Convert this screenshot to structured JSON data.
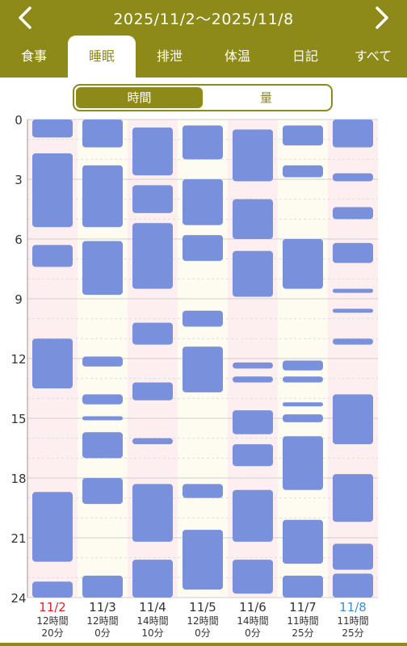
{
  "header": {
    "date_range": "2025/11/2～2025/11/8",
    "prev_icon": "chevron-left-icon",
    "next_icon": "chevron-right-icon"
  },
  "tabs": [
    {
      "label": "食事",
      "active": false
    },
    {
      "label": "睡眠",
      "active": true
    },
    {
      "label": "排泄",
      "active": false
    },
    {
      "label": "体温",
      "active": false
    },
    {
      "label": "日記",
      "active": false
    },
    {
      "label": "すべて",
      "active": false
    }
  ],
  "segmented": {
    "time_label": "時間",
    "amount_label": "量",
    "selected": "time"
  },
  "colors": {
    "accent": "#8d8a1a",
    "bar": "#7990dd",
    "pink_col": "#fdeef0",
    "cream_col": "#fefcf1",
    "sunday": "#e2202a",
    "saturday": "#3b8ddb"
  },
  "chart_data": {
    "type": "timeline",
    "y_axis_ticks": [
      "0",
      "3",
      "6",
      "9",
      "12",
      "15",
      "18",
      "21",
      "24"
    ],
    "ylim": [
      0,
      24
    ],
    "days": [
      {
        "date": "11/2",
        "total_hours": "12時間",
        "total_minutes": "20分",
        "color": "sunday",
        "sleep": [
          [
            0,
            0.9
          ],
          [
            1.7,
            5.4
          ],
          [
            6.3,
            7.4
          ],
          [
            11.0,
            13.5
          ],
          [
            18.7,
            22.2
          ],
          [
            23.2,
            24
          ]
        ]
      },
      {
        "date": "11/3",
        "total_hours": "12時間",
        "total_minutes": "0分",
        "color": "normal",
        "sleep": [
          [
            0,
            1.4
          ],
          [
            2.3,
            5.4
          ],
          [
            6.1,
            8.8
          ],
          [
            11.9,
            12.4
          ],
          [
            13.8,
            14.3
          ],
          [
            14.9,
            15.1
          ],
          [
            15.7,
            17.0
          ],
          [
            18.0,
            19.3
          ],
          [
            22.9,
            24
          ]
        ]
      },
      {
        "date": "11/4",
        "total_hours": "14時間",
        "total_minutes": "10分",
        "color": "normal",
        "sleep": [
          [
            0.4,
            2.8
          ],
          [
            3.3,
            4.7
          ],
          [
            5.2,
            8.5
          ],
          [
            10.2,
            11.3
          ],
          [
            13.2,
            14.1
          ],
          [
            16.0,
            16.3
          ],
          [
            18.3,
            21.2
          ],
          [
            22.1,
            24
          ]
        ]
      },
      {
        "date": "11/5",
        "total_hours": "12時間",
        "total_minutes": "0分",
        "color": "normal",
        "sleep": [
          [
            0.3,
            2.0
          ],
          [
            3.0,
            5.3
          ],
          [
            5.8,
            7.1
          ],
          [
            9.6,
            10.4
          ],
          [
            11.4,
            13.7
          ],
          [
            18.3,
            19.0
          ],
          [
            20.6,
            23.6
          ]
        ]
      },
      {
        "date": "11/6",
        "total_hours": "14時間",
        "total_minutes": "0分",
        "color": "normal",
        "sleep": [
          [
            0.5,
            3.1
          ],
          [
            4.0,
            6.0
          ],
          [
            6.6,
            8.9
          ],
          [
            12.2,
            12.5
          ],
          [
            12.9,
            13.2
          ],
          [
            14.6,
            15.8
          ],
          [
            16.3,
            17.4
          ],
          [
            18.6,
            21.2
          ],
          [
            22.1,
            23.8
          ]
        ]
      },
      {
        "date": "11/7",
        "total_hours": "11時間",
        "total_minutes": "25分",
        "color": "normal",
        "sleep": [
          [
            0.3,
            1.3
          ],
          [
            2.3,
            2.9
          ],
          [
            6.0,
            8.5
          ],
          [
            12.1,
            12.6
          ],
          [
            12.9,
            13.2
          ],
          [
            14.2,
            14.4
          ],
          [
            14.8,
            15.2
          ],
          [
            15.9,
            18.6
          ],
          [
            20.1,
            22.3
          ],
          [
            22.9,
            24
          ]
        ]
      },
      {
        "date": "11/8",
        "total_hours": "11時間",
        "total_minutes": "25分",
        "color": "saturday",
        "sleep": [
          [
            0,
            1.4
          ],
          [
            2.7,
            3.1
          ],
          [
            4.4,
            5.0
          ],
          [
            6.2,
            7.2
          ],
          [
            8.5,
            8.7
          ],
          [
            9.5,
            9.7
          ],
          [
            11.0,
            11.3
          ],
          [
            13.8,
            16.3
          ],
          [
            17.8,
            20.2
          ],
          [
            21.3,
            22.6
          ],
          [
            22.8,
            24
          ]
        ]
      }
    ]
  }
}
